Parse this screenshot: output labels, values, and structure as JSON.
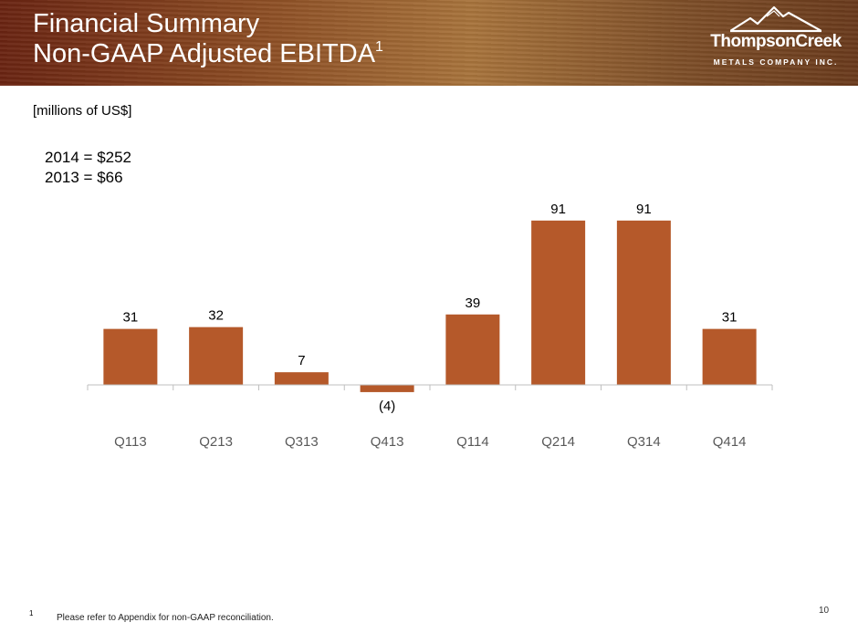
{
  "slide": {
    "title_line1": "Financial Summary",
    "title_line2": "Non-GAAP Adjusted EBITDA",
    "title_footnote_ref": "1",
    "units": "[millions of US$]",
    "annual": {
      "line_2014": "2014 = $252",
      "line_2013": "2013 = $66"
    },
    "footnote_marker": "1",
    "footnote": "Please refer to Appendix for non-GAAP reconciliation.",
    "page_number": "10"
  },
  "logo": {
    "name": "ThompsonCreek",
    "tagline": "METALS COMPANY INC.",
    "icon": "mountain-peaks-icon"
  },
  "colors": {
    "bar": "#B5592A",
    "axis": "#BFBFBF",
    "tick_label": "#595959",
    "text": "#000000"
  },
  "chart_data": {
    "type": "bar",
    "title": "Non-GAAP Adjusted EBITDA",
    "ylabel": "millions of US$",
    "xlabel": "",
    "categories": [
      "Q113",
      "Q213",
      "Q313",
      "Q413",
      "Q114",
      "Q214",
      "Q314",
      "Q414"
    ],
    "values": [
      31,
      32,
      7,
      -4,
      39,
      91,
      91,
      31
    ],
    "data_labels": [
      "31",
      "32",
      "7",
      "(4)",
      "39",
      "91",
      "91",
      "31"
    ],
    "ylim": [
      -4,
      91
    ],
    "grid": false,
    "legend": "none"
  }
}
